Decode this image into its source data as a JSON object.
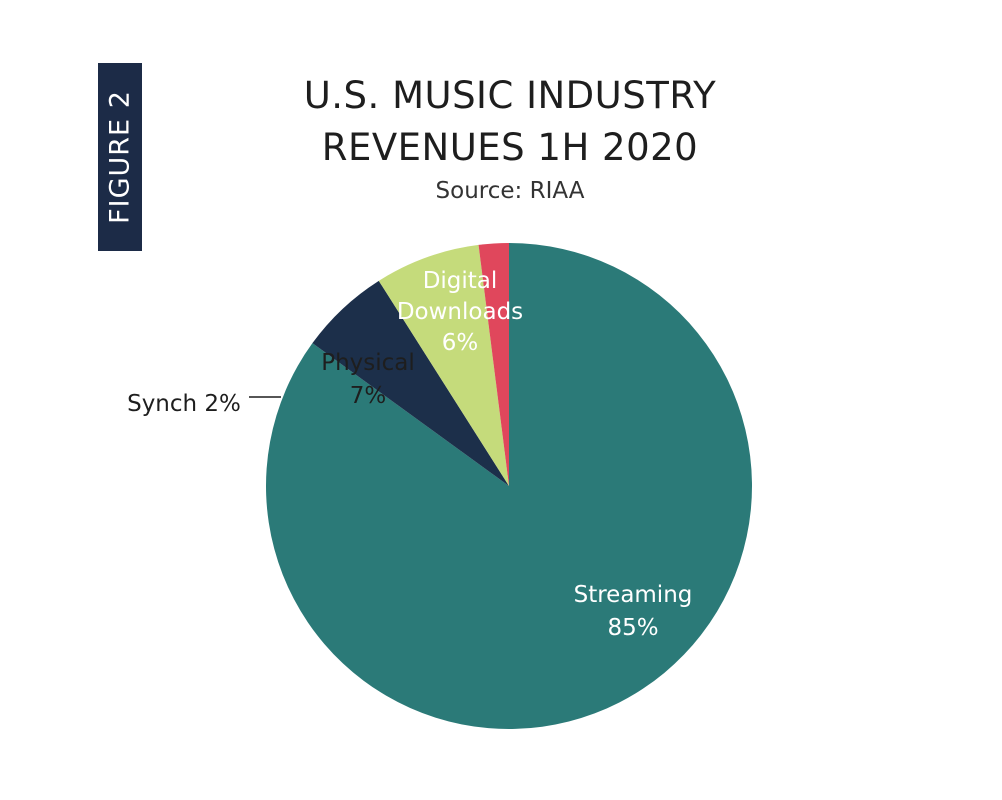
{
  "figure_tab": "FIGURE 2",
  "chart_data": {
    "type": "pie",
    "title": [
      "U.S. MUSIC INDUSTRY",
      "REVENUES 1H 2020"
    ],
    "subtitle": "Source: RIAA",
    "slices": [
      {
        "label": "Streaming",
        "value": 85,
        "value_label": "85%",
        "color": "#2b7a78",
        "text_color": "#ffffff"
      },
      {
        "label": "Digital Downloads",
        "label_lines": [
          "Digital",
          "Downloads"
        ],
        "value": 6,
        "value_label": "6%",
        "color": "#1c2f4a",
        "text_color": "#ffffff"
      },
      {
        "label": "Physical",
        "value": 7,
        "value_label": "7%",
        "color": "#c5db7b",
        "text_color": "#1e1e1e"
      },
      {
        "label": "Synch",
        "value": 2,
        "value_label": "2%",
        "display": "Synch 2%",
        "color": "#e0475c",
        "text_color": "#1e1e1e"
      }
    ]
  }
}
